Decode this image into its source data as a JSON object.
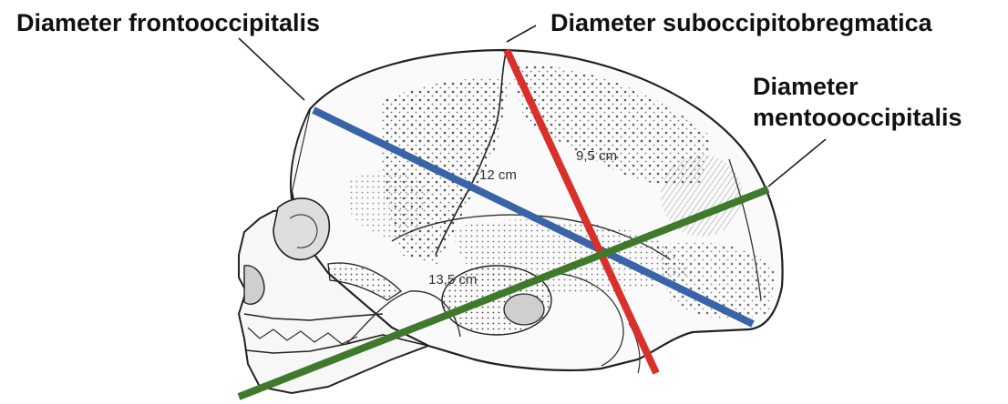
{
  "labels": {
    "frontooccipitalis": "Diameter frontooccipitalis",
    "suboccipitobregmatica": "Diameter suboccipitobregmatica",
    "mento_line1": "Diameter",
    "mento_line2": "mentoooccipitalis"
  },
  "measurements": {
    "fronto": "12 cm",
    "subocc": "9,5 cm",
    "mento": "13,5 cm"
  },
  "colors": {
    "fronto_line": "#3a64a8",
    "subocc_line": "#d8302a",
    "mento_line": "#3f7a2c",
    "label_text": "#111111",
    "skull_outline": "#222222"
  }
}
